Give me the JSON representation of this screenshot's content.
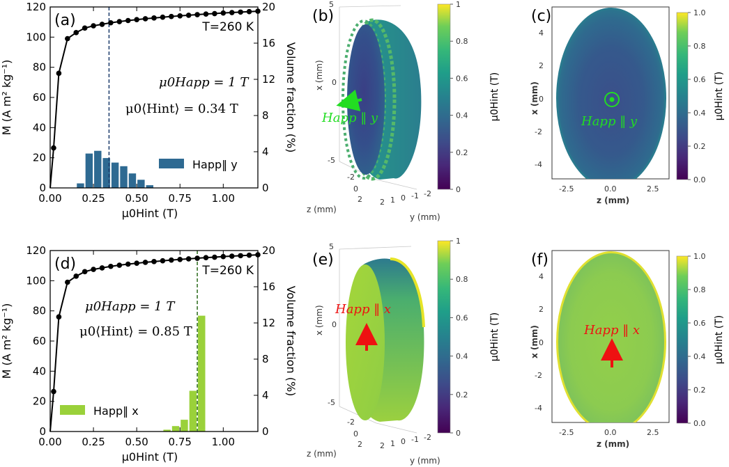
{
  "colors": {
    "blue_hist": "#2e6a92",
    "green_hist": "#9ad13a",
    "line": "#000000",
    "annot_green": "#22dd22",
    "annot_red": "#ee1111",
    "dash_blue": "#1a3a6a",
    "dash_green": "#2a6a1a"
  },
  "labels": {
    "a": "(a)",
    "b": "(b)",
    "c": "(c)",
    "d": "(d)",
    "e": "(e)",
    "f": "(f)"
  },
  "chart_data": [
    {
      "id": "a",
      "type": "line+bar",
      "title": "T=260 K",
      "xlabel": "μ0Hint (T)",
      "ylabel_left": "M (A m² kg⁻¹)",
      "ylabel_right": "Volume fraction (%)",
      "xlim": [
        0,
        1.2
      ],
      "ylim_left": [
        0,
        120
      ],
      "ylim_right": [
        0,
        20
      ],
      "xticks": [
        "0.00",
        "0.25",
        "0.50",
        "0.75",
        "1.00"
      ],
      "yticks_left": [
        "0",
        "20",
        "40",
        "60",
        "80",
        "100",
        "120"
      ],
      "yticks_right": [
        "0",
        "4",
        "8",
        "12",
        "16",
        "20"
      ],
      "annotation_1": "μ0Happ = 1 T",
      "annotation_2": "μ0⟨Hint⟩ = 0.34 T",
      "legend": "Happ‖ y",
      "mean_line_x": 0.34,
      "magnetization": {
        "x": [
          0.0,
          0.02,
          0.05,
          0.1,
          0.15,
          0.2,
          0.25,
          0.3,
          0.35,
          0.4,
          0.45,
          0.5,
          0.55,
          0.6,
          0.65,
          0.7,
          0.75,
          0.8,
          0.85,
          0.9,
          0.95,
          1.0,
          1.05,
          1.1,
          1.15,
          1.2
        ],
        "y": [
          0,
          26.5,
          76,
          99,
          103,
          106,
          107.5,
          108.5,
          109.5,
          110.3,
          111,
          111.6,
          112.2,
          112.7,
          113.2,
          113.7,
          114.1,
          114.5,
          114.9,
          115.3,
          115.6,
          116,
          116.3,
          116.6,
          116.9,
          117.2
        ]
      },
      "histogram": {
        "bin_left": [
          0.15,
          0.2,
          0.25,
          0.3,
          0.35,
          0.4,
          0.45,
          0.5,
          0.55
        ],
        "bin_width": 0.05,
        "values": [
          0.5,
          3.8,
          4.1,
          3.3,
          2.8,
          2.4,
          1.6,
          0.9,
          0.3
        ]
      }
    },
    {
      "id": "d",
      "type": "line+bar",
      "title": "T=260 K",
      "xlabel": "μ0Hint (T)",
      "ylabel_left": "M (A m² kg⁻¹)",
      "ylabel_right": "Volume fraction (%)",
      "xlim": [
        0,
        1.2
      ],
      "ylim_left": [
        0,
        120
      ],
      "ylim_right": [
        0,
        20
      ],
      "xticks": [
        "0.00",
        "0.25",
        "0.50",
        "0.75",
        "1.00"
      ],
      "yticks_left": [
        "0",
        "20",
        "40",
        "60",
        "80",
        "100",
        "120"
      ],
      "yticks_right": [
        "0",
        "4",
        "8",
        "12",
        "16",
        "20"
      ],
      "annotation_1": "μ0Happ = 1 T",
      "annotation_2": "μ0⟨Hint⟩ = 0.85 T",
      "legend": "Happ‖ x",
      "mean_line_x": 0.85,
      "magnetization": {
        "x": [
          0.0,
          0.02,
          0.05,
          0.1,
          0.15,
          0.2,
          0.25,
          0.3,
          0.35,
          0.4,
          0.45,
          0.5,
          0.55,
          0.6,
          0.65,
          0.7,
          0.75,
          0.8,
          0.85,
          0.9,
          0.95,
          1.0,
          1.05,
          1.1,
          1.15,
          1.2
        ],
        "y": [
          0,
          26.5,
          76,
          99,
          103,
          106,
          107.5,
          108.5,
          109.5,
          110.3,
          111,
          111.6,
          112.2,
          112.7,
          113.2,
          113.7,
          114.1,
          114.5,
          114.9,
          115.3,
          115.6,
          116,
          116.3,
          116.6,
          116.9,
          117.2
        ]
      },
      "histogram": {
        "bin_left": [
          0.65,
          0.7,
          0.75,
          0.8,
          0.85
        ],
        "bin_width": 0.05,
        "values": [
          0.2,
          0.6,
          1.3,
          4.5,
          12.8
        ]
      }
    },
    {
      "id": "b",
      "type": "3d-scatter",
      "xlabel": "x (mm)",
      "ylabel": "y (mm)",
      "zlabel": "z (mm)",
      "x_ticks": [
        "5",
        "0",
        "-5"
      ],
      "y_ticks": [
        "2",
        "1",
        "0",
        "-1",
        "-2"
      ],
      "z_ticks": [
        "-2",
        "0",
        "2"
      ],
      "colorbar_ticks": [
        "1",
        "0.8",
        "0.6",
        "0.4",
        "0.2",
        "0"
      ],
      "colorbar_label": "μ0Hint (T)",
      "annotation": "Happ ‖ y"
    },
    {
      "id": "e",
      "type": "3d-scatter",
      "xlabel": "x (mm)",
      "ylabel": "y (mm)",
      "zlabel": "z (mm)",
      "x_ticks": [
        "5",
        "0",
        "-5"
      ],
      "y_ticks": [
        "2",
        "1",
        "0",
        "-1",
        "-2"
      ],
      "z_ticks": [
        "-2",
        "0",
        "2"
      ],
      "colorbar_ticks": [
        "1",
        "0.8",
        "0.6",
        "0.4",
        "0.2",
        "0"
      ],
      "colorbar_label": "μ0Hint (T)",
      "annotation": "Happ ‖ x"
    },
    {
      "id": "c",
      "type": "heatmap",
      "xlabel": "z (mm)",
      "ylabel": "x (mm)",
      "xticks": [
        "-2.5",
        "0.0",
        "2.5"
      ],
      "yticks": [
        "4",
        "2",
        "0",
        "-2",
        "-4"
      ],
      "colorbar_ticks": [
        "1.0",
        "0.8",
        "0.6",
        "0.4",
        "0.2",
        "0.0"
      ],
      "colorbar_label": "μ0Hint (T)",
      "annotation": "Happ ‖ y"
    },
    {
      "id": "f",
      "type": "heatmap",
      "xlabel": "z (mm)",
      "ylabel": "x (mm)",
      "xticks": [
        "-2.5",
        "0.0",
        "2.5"
      ],
      "yticks": [
        "4",
        "2",
        "0",
        "-2",
        "-4"
      ],
      "colorbar_ticks": [
        "1.0",
        "0.8",
        "0.6",
        "0.4",
        "0.2",
        "0.0"
      ],
      "colorbar_label": "μ0Hint (T)",
      "annotation": "Happ ‖ x"
    }
  ]
}
